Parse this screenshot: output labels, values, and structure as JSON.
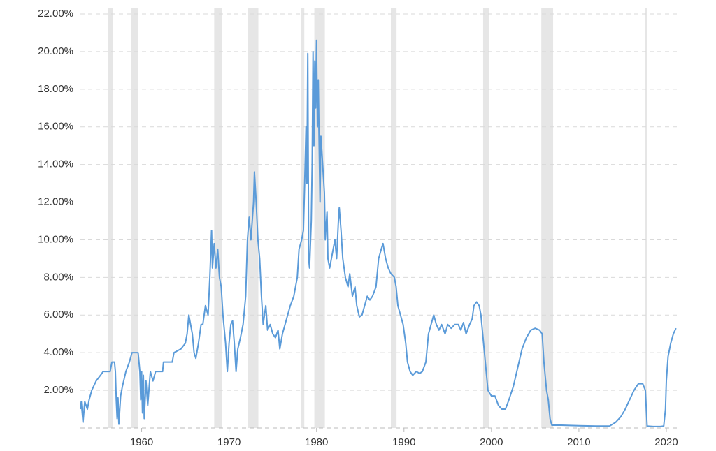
{
  "chart_data": {
    "type": "line",
    "color": "#5b9bd9",
    "grid": true,
    "xlim": [
      1953,
      2021.2
    ],
    "ylim": [
      0,
      22
    ],
    "xticks": [
      1960,
      1970,
      1980,
      1990,
      2000,
      2010,
      2020
    ],
    "yticks": [
      {
        "value": 2,
        "label": "2.00%"
      },
      {
        "value": 4,
        "label": "4.00%"
      },
      {
        "value": 6,
        "label": "6.00%"
      },
      {
        "value": 8,
        "label": "8.00%"
      },
      {
        "value": 10,
        "label": "10.00%"
      },
      {
        "value": 12,
        "label": "12.00%"
      },
      {
        "value": 14,
        "label": "14.00%"
      },
      {
        "value": 16,
        "label": "16.00%"
      },
      {
        "value": 18,
        "label": "18.00%"
      },
      {
        "value": 20,
        "label": "20.00%"
      },
      {
        "value": 22,
        "label": "22.00%"
      }
    ],
    "recessions": [
      [
        1956.2,
        1956.75
      ],
      [
        1958.8,
        1959.6
      ],
      [
        1968.3,
        1969.2
      ],
      [
        1972.15,
        1973.35
      ],
      [
        1978.2,
        1978.6
      ],
      [
        1979.75,
        1980.95
      ],
      [
        1988.5,
        1989.15
      ],
      [
        1999.05,
        1999.7
      ],
      [
        2005.7,
        2007.05
      ],
      [
        2017.55,
        2017.8
      ]
    ],
    "x": [
      1953.0,
      1953.1,
      1953.3,
      1953.5,
      1953.8,
      1954.0,
      1954.3,
      1954.8,
      1955.3,
      1955.6,
      1956.4,
      1956.6,
      1956.9,
      1957.0,
      1957.1,
      1957.2,
      1957.3,
      1957.4,
      1957.6,
      1957.8,
      1958.2,
      1958.6,
      1958.9,
      1959.6,
      1959.8,
      1959.9,
      1960.0,
      1960.1,
      1960.2,
      1960.3,
      1960.5,
      1960.7,
      1961.0,
      1961.3,
      1961.6,
      1962.0,
      1962.4,
      1962.5,
      1963.5,
      1963.7,
      1964.5,
      1965.0,
      1965.2,
      1965.4,
      1965.6,
      1965.8,
      1966.0,
      1966.2,
      1966.5,
      1966.8,
      1967.0,
      1967.3,
      1967.6,
      1967.8,
      1968.0,
      1968.1,
      1968.3,
      1968.5,
      1968.7,
      1968.9,
      1969.1,
      1969.3,
      1969.6,
      1969.8,
      1970.0,
      1970.2,
      1970.4,
      1970.6,
      1970.8,
      1971.0,
      1971.3,
      1971.6,
      1971.9,
      1972.1,
      1972.3,
      1972.5,
      1972.8,
      1972.9,
      1973.1,
      1973.3,
      1973.5,
      1973.7,
      1973.9,
      1974.2,
      1974.4,
      1974.7,
      1975.0,
      1975.3,
      1975.6,
      1975.8,
      1976.1,
      1976.4,
      1976.7,
      1977.0,
      1977.4,
      1977.8,
      1978.0,
      1978.3,
      1978.5,
      1978.7,
      1978.8,
      1978.9,
      1979.0,
      1979.1,
      1979.2,
      1979.4,
      1979.5,
      1979.6,
      1979.7,
      1979.8,
      1979.9,
      1980.0,
      1980.1,
      1980.2,
      1980.3,
      1980.4,
      1980.5,
      1980.7,
      1980.9,
      1981.0,
      1981.2,
      1981.3,
      1981.5,
      1981.7,
      1981.9,
      1982.1,
      1982.3,
      1982.5,
      1982.6,
      1982.8,
      1983.0,
      1983.3,
      1983.6,
      1983.8,
      1984.1,
      1984.4,
      1984.6,
      1984.9,
      1985.2,
      1985.5,
      1985.8,
      1986.1,
      1986.4,
      1986.8,
      1987.1,
      1987.4,
      1987.6,
      1987.9,
      1988.2,
      1988.5,
      1988.9,
      1989.1,
      1989.3,
      1989.6,
      1989.9,
      1990.2,
      1990.4,
      1990.7,
      1991.0,
      1991.4,
      1991.8,
      1992.1,
      1992.5,
      1992.8,
      1993.1,
      1993.4,
      1993.7,
      1994.0,
      1994.3,
      1994.7,
      1995.0,
      1995.4,
      1995.8,
      1996.2,
      1996.5,
      1996.8,
      1997.1,
      1997.5,
      1997.8,
      1998.0,
      1998.3,
      1998.6,
      1998.8,
      1999.0,
      1999.2,
      1999.4,
      1999.6,
      2000.0,
      2000.4,
      2000.8,
      2001.2,
      2001.6,
      2002.0,
      2002.5,
      2003.0,
      2003.5,
      2004.0,
      2004.5,
      2005.0,
      2005.5,
      2005.8,
      2006.0,
      2006.3,
      2006.5,
      2006.7,
      2006.9,
      2008.0,
      2010.0,
      2012.0,
      2013.5,
      2014.2,
      2014.8,
      2015.3,
      2015.8,
      2016.3,
      2016.8,
      2017.3,
      2017.6,
      2017.8,
      2018.5,
      2019.3,
      2019.7,
      2019.9,
      2020.0,
      2020.2,
      2020.5,
      2020.8,
      2021.1
    ],
    "values": [
      1.0,
      1.4,
      0.3,
      1.4,
      1.0,
      1.5,
      2.0,
      2.5,
      2.8,
      3.0,
      3.0,
      3.5,
      3.5,
      3.0,
      1.5,
      0.5,
      1.6,
      0.2,
      1.7,
      2.2,
      3.0,
      3.5,
      4.0,
      4.0,
      3.0,
      1.5,
      3.0,
      0.8,
      2.8,
      0.5,
      2.5,
      1.2,
      3.0,
      2.5,
      3.0,
      3.0,
      3.0,
      3.5,
      3.5,
      4.0,
      4.2,
      4.5,
      5.0,
      6.0,
      5.5,
      5.0,
      4.0,
      3.7,
      4.5,
      5.5,
      5.5,
      6.5,
      6.0,
      8.0,
      10.5,
      8.5,
      9.8,
      8.5,
      9.5,
      8.0,
      7.5,
      6.0,
      4.5,
      3.0,
      4.5,
      5.5,
      5.7,
      4.5,
      3.0,
      4.2,
      4.8,
      5.5,
      7.0,
      10.0,
      11.2,
      10.0,
      12.0,
      13.6,
      12.0,
      10.0,
      9.0,
      7.0,
      5.5,
      6.5,
      5.2,
      5.5,
      5.0,
      4.8,
      5.2,
      4.2,
      5.0,
      5.5,
      6.0,
      6.5,
      7.0,
      8.0,
      9.5,
      10.0,
      10.5,
      14.0,
      16.0,
      13.0,
      19.9,
      9.0,
      8.5,
      11.0,
      14.0,
      20.0,
      15.0,
      19.5,
      17.0,
      20.6,
      16.0,
      18.5,
      15.0,
      12.0,
      15.5,
      14.0,
      12.5,
      10.0,
      11.5,
      9.0,
      8.5,
      9.0,
      9.5,
      10.0,
      9.0,
      11.0,
      11.7,
      10.5,
      9.0,
      8.0,
      7.5,
      8.2,
      7.0,
      7.5,
      6.5,
      5.9,
      6.0,
      6.5,
      7.0,
      6.8,
      7.0,
      7.5,
      9.0,
      9.5,
      9.8,
      9.0,
      8.5,
      8.2,
      8.0,
      7.5,
      6.5,
      6.0,
      5.5,
      4.5,
      3.5,
      3.0,
      2.8,
      3.0,
      2.9,
      3.0,
      3.5,
      5.0,
      5.5,
      6.0,
      5.5,
      5.2,
      5.5,
      5.0,
      5.5,
      5.3,
      5.5,
      5.5,
      5.2,
      5.6,
      5.0,
      5.5,
      5.8,
      6.5,
      6.7,
      6.5,
      6.0,
      5.0,
      4.0,
      3.0,
      2.0,
      1.7,
      1.7,
      1.2,
      1.0,
      1.0,
      1.5,
      2.2,
      3.2,
      4.2,
      4.8,
      5.2,
      5.3,
      5.2,
      5.0,
      3.5,
      2.0,
      1.5,
      0.5,
      0.15,
      0.15,
      0.12,
      0.1,
      0.1,
      0.3,
      0.6,
      1.0,
      1.5,
      2.0,
      2.35,
      2.35,
      2.0,
      0.1,
      0.08,
      0.08,
      0.1,
      1.0,
      2.5,
      3.8,
      4.5,
      5.0,
      5.3
    ]
  }
}
